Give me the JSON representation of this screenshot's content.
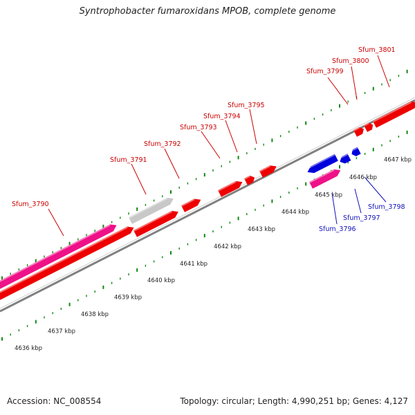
{
  "title": "Syntrophobacter fumaroxidans MPOB, complete genome",
  "footer": {
    "accession": "Accession: NC_008554",
    "topology": "Topology: circular; Length: 4,990,251 bp; Genes: 4,127"
  },
  "colors": {
    "cds_red": "#ee0000",
    "cds_blue": "#0000dd",
    "cds_pink": "#ee1188",
    "cds_gray": "#c8c8c8",
    "backbone": "#808080",
    "tick": "#118811",
    "label_red": "#cc0000",
    "label_blue": "#1111bb"
  },
  "scale_labels": [
    "4636 kbp",
    "4637 kbp",
    "4638 kbp",
    "4639 kbp",
    "4640 kbp",
    "4641 kbp",
    "4642 kbp",
    "4643 kbp",
    "4644 kbp",
    "4645 kbp",
    "4646 kbp",
    "4647 kbp"
  ],
  "gene_labels": [
    {
      "name": "Sfum_3790",
      "color": "red"
    },
    {
      "name": "Sfum_3791",
      "color": "red"
    },
    {
      "name": "Sfum_3792",
      "color": "red"
    },
    {
      "name": "Sfum_3793",
      "color": "red"
    },
    {
      "name": "Sfum_3794",
      "color": "red"
    },
    {
      "name": "Sfum_3795",
      "color": "red"
    },
    {
      "name": "Sfum_3799",
      "color": "red"
    },
    {
      "name": "Sfum_3800",
      "color": "red"
    },
    {
      "name": "Sfum_3801",
      "color": "red"
    },
    {
      "name": "Sfum_3796",
      "color": "blue"
    },
    {
      "name": "Sfum_3797",
      "color": "blue"
    },
    {
      "name": "Sfum_3798",
      "color": "blue"
    }
  ]
}
